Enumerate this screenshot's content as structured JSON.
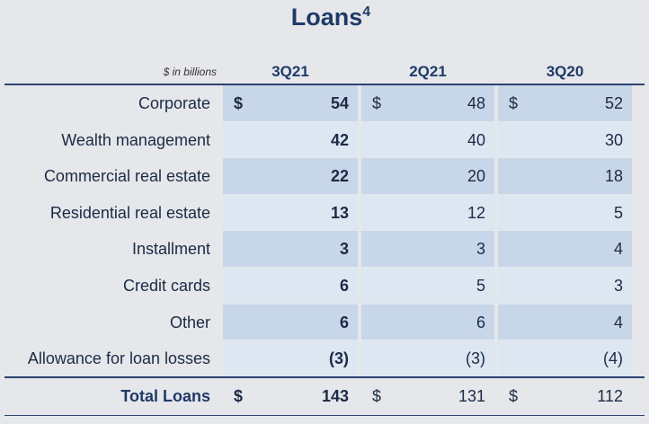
{
  "title": "Loans",
  "title_sup": "4",
  "table": {
    "unit": "$ in billions",
    "columns": [
      "3Q21",
      "2Q21",
      "3Q20"
    ],
    "rows": [
      {
        "label": "Corporate",
        "currency": "$",
        "values": [
          "54",
          "48",
          "52"
        ]
      },
      {
        "label": "Wealth management",
        "values": [
          "42",
          "40",
          "30"
        ]
      },
      {
        "label": "Commercial real estate",
        "values": [
          "22",
          "20",
          "18"
        ]
      },
      {
        "label": "Residential real estate",
        "values": [
          "13",
          "12",
          "5"
        ]
      },
      {
        "label": "Installment",
        "values": [
          "3",
          "3",
          "4"
        ]
      },
      {
        "label": "Credit cards",
        "values": [
          "6",
          "5",
          "3"
        ]
      },
      {
        "label": "Other",
        "values": [
          "6",
          "6",
          "4"
        ]
      },
      {
        "label": "Allowance for loan losses",
        "values": [
          "(3)",
          "(3)",
          "(4)"
        ]
      }
    ],
    "total": {
      "label": "Total Loans",
      "currency": "$",
      "values": [
        "143",
        "131",
        "112"
      ]
    }
  }
}
